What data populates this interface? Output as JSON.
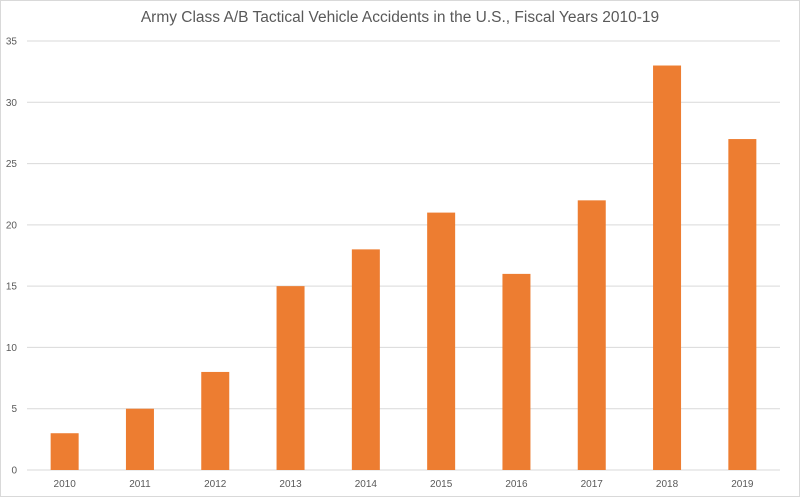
{
  "chart_data": {
    "type": "bar",
    "title": "Army Class A/B Tactical Vehicle Accidents in the U.S., Fiscal Years 2010-19",
    "xlabel": "",
    "ylabel": "",
    "categories": [
      "2010",
      "2011",
      "2012",
      "2013",
      "2014",
      "2015",
      "2016",
      "2017",
      "2018",
      "2019"
    ],
    "values": [
      3,
      5,
      8,
      15,
      18,
      21,
      16,
      22,
      33,
      27
    ],
    "ylim": [
      0,
      35
    ],
    "yticks": [
      "0",
      "5",
      "10",
      "15",
      "20",
      "25",
      "30",
      "35"
    ],
    "grid": true,
    "legend": "none",
    "bar_color": "#ED7D31",
    "grid_color": "#D9D9D9",
    "text_color": "#595959"
  }
}
